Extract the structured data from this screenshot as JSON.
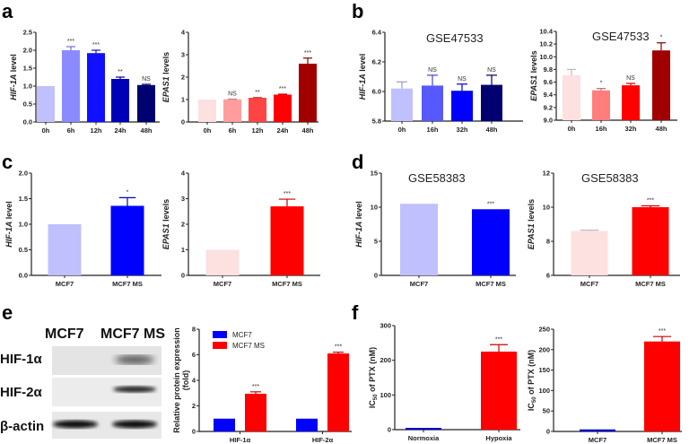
{
  "panel_letters": [
    "a",
    "b",
    "c",
    "d",
    "e",
    "f"
  ],
  "western_blot": {
    "columns": [
      "MCF7",
      "MCF7 MS"
    ],
    "rows": [
      "HIF-1α",
      "HIF-2α",
      "β-actin"
    ]
  },
  "chart_data": [
    {
      "id": "a1",
      "type": "bar",
      "title": "",
      "ylabel": [
        {
          "t": "HIF-1A",
          "i": true
        },
        {
          "t": " level"
        }
      ],
      "ylim": [
        0,
        2.5
      ],
      "yticks": [
        "0.0",
        "0.5",
        "1.0",
        "1.5",
        "2.0",
        "2.5"
      ],
      "categories": [
        "0h",
        "6h",
        "12h",
        "24h",
        "48h"
      ],
      "values": [
        1.0,
        2.0,
        1.92,
        1.2,
        1.03
      ],
      "errors": [
        0,
        0.1,
        0.08,
        0.05,
        0.02
      ],
      "sig": [
        "",
        "***",
        "***",
        "**",
        "NS"
      ],
      "colors": [
        "#c0c0ff",
        "#8b8bff",
        "#1010ff",
        "#0000b8",
        "#000070"
      ]
    },
    {
      "id": "a2",
      "type": "bar",
      "title": "",
      "ylabel": [
        {
          "t": "EPAS1",
          "i": true
        },
        {
          "t": " levels"
        }
      ],
      "ylim": [
        0,
        4
      ],
      "yticks": [
        "0",
        "1",
        "2",
        "3",
        "4"
      ],
      "categories": [
        "0h",
        "6h",
        "12h",
        "24h",
        "48h"
      ],
      "values": [
        1.0,
        1.01,
        1.08,
        1.22,
        2.6
      ],
      "errors": [
        0,
        0.01,
        0.01,
        0.02,
        0.25
      ],
      "sig": [
        "",
        "NS",
        "**",
        "***",
        "***"
      ],
      "colors": [
        "#fde0e0",
        "#ff9d9d",
        "#ff4444",
        "#ff0000",
        "#a00000"
      ]
    },
    {
      "id": "b1",
      "type": "bar",
      "title": "GSE47533",
      "ylabel": [
        {
          "t": "HIF-1A",
          "i": true
        },
        {
          "t": " level"
        }
      ],
      "ylim": [
        5.8,
        6.4
      ],
      "yticks": [
        "5.8",
        "6.0",
        "6.2",
        "6.4"
      ],
      "categories": [
        "0h",
        "16h",
        "32h",
        "48h"
      ],
      "values": [
        6.02,
        6.04,
        6.005,
        6.045
      ],
      "errors": [
        0.045,
        0.07,
        0.045,
        0.065
      ],
      "sig": [
        "",
        "NS",
        "NS",
        "NS"
      ],
      "colors": [
        "#c0c0ff",
        "#5858ff",
        "#0000ff",
        "#000070"
      ]
    },
    {
      "id": "b2",
      "type": "bar",
      "title": "GSE47533",
      "ylabel": [
        {
          "t": "EPAS1",
          "i": true
        },
        {
          "t": " levels"
        }
      ],
      "ylim": [
        9.0,
        10.4
      ],
      "yticks": [
        "9.0",
        "9.2",
        "9.4",
        "9.6",
        "9.8",
        "10.0",
        "10.2",
        "10.4"
      ],
      "categories": [
        "0h",
        "16h",
        "32h",
        "48h"
      ],
      "values": [
        9.71,
        9.47,
        9.55,
        10.1
      ],
      "errors": [
        0.09,
        0.03,
        0.03,
        0.12
      ],
      "sig": [
        "",
        "*",
        "NS",
        "*"
      ],
      "colors": [
        "#fde0e0",
        "#ff7d7d",
        "#ff0000",
        "#a00000"
      ]
    },
    {
      "id": "c1",
      "type": "bar",
      "title": "",
      "ylabel": [
        {
          "t": "HIF-1A",
          "i": true
        },
        {
          "t": " level"
        }
      ],
      "ylim": [
        0,
        2.0
      ],
      "yticks": [
        "0.0",
        "0.5",
        "1.0",
        "1.5",
        "2.0"
      ],
      "categories": [
        "MCF7",
        "MCF7 MS"
      ],
      "values": [
        1.0,
        1.36
      ],
      "errors": [
        0,
        0.16
      ],
      "sig": [
        "",
        "*"
      ],
      "colors": [
        "#c0c0ff",
        "#0000ff"
      ]
    },
    {
      "id": "c2",
      "type": "bar",
      "title": "",
      "ylabel": [
        {
          "t": "EPAS1",
          "i": true
        },
        {
          "t": " levels"
        }
      ],
      "ylim": [
        0,
        4
      ],
      "yticks": [
        "0",
        "1",
        "2",
        "3",
        "4"
      ],
      "categories": [
        "MCF7",
        "MCF7 MS"
      ],
      "values": [
        1.0,
        2.7
      ],
      "errors": [
        0,
        0.28
      ],
      "sig": [
        "",
        "***"
      ],
      "colors": [
        "#fde0e0",
        "#ff0000"
      ]
    },
    {
      "id": "d1",
      "type": "bar",
      "title": "GSE58383",
      "ylabel": [
        {
          "t": "HIF-1A",
          "i": true
        },
        {
          "t": " level"
        }
      ],
      "ylim": [
        0,
        15
      ],
      "yticks": [
        "0",
        "5",
        "10",
        "15"
      ],
      "categories": [
        "MCF7",
        "MCF7 MS"
      ],
      "values": [
        10.5,
        9.7
      ],
      "errors": [
        0,
        0
      ],
      "sig": [
        "",
        "***"
      ],
      "colors": [
        "#c0c0ff",
        "#0000ff"
      ]
    },
    {
      "id": "d2",
      "type": "bar",
      "title": "GSE58383",
      "ylabel": [
        {
          "t": "EPAS1",
          "i": true
        },
        {
          "t": " levels"
        }
      ],
      "ylim": [
        6,
        12
      ],
      "yticks": [
        "6",
        "8",
        "10",
        "12"
      ],
      "categories": [
        "MCF7",
        "MCF7 MS"
      ],
      "values": [
        8.6,
        10.0
      ],
      "errors": [
        0.05,
        0.08
      ],
      "sig": [
        "",
        "***"
      ],
      "colors": [
        "#fde0e0",
        "#ff0000"
      ]
    },
    {
      "id": "e1",
      "type": "grouped-bar",
      "title": "",
      "ylabel": [
        {
          "t": "Relative protein expression"
        }
      ],
      "ylabel2": "(fold)",
      "ylim": [
        0,
        8
      ],
      "yticks": [
        "0",
        "2",
        "4",
        "6",
        "8"
      ],
      "categories": [
        "HIF-1α",
        "HIF-2α"
      ],
      "series": [
        {
          "name": "MCF7",
          "color": "#0000ff",
          "values": [
            1.0,
            1.0
          ],
          "errors": [
            0,
            0
          ],
          "sig": [
            "",
            ""
          ]
        },
        {
          "name": "MCF7 MS",
          "color": "#ff0000",
          "values": [
            2.95,
            6.1
          ],
          "errors": [
            0.15,
            0.1
          ],
          "sig": [
            "***",
            "***"
          ]
        }
      ],
      "legend": "top-left"
    },
    {
      "id": "f1",
      "type": "bar",
      "title": "",
      "ylabel": [
        {
          "t": "IC"
        },
        {
          "t": "50",
          "sub": true
        },
        {
          "t": " of PTX (nM)"
        }
      ],
      "ylim": [
        0,
        300
      ],
      "yticks": [
        "0",
        "100",
        "200",
        "300"
      ],
      "categories": [
        "Normoxia",
        "Hypoxia"
      ],
      "values": [
        5,
        225
      ],
      "errors": [
        0,
        20
      ],
      "sig": [
        "",
        "***"
      ],
      "colors": [
        "#0000cc",
        "#ff0000"
      ]
    },
    {
      "id": "f2",
      "type": "bar",
      "title": "",
      "ylabel": [
        {
          "t": "IC"
        },
        {
          "t": "50",
          "sub": true
        },
        {
          "t": " of PTX (nM)"
        }
      ],
      "ylim": [
        0,
        250
      ],
      "yticks": [
        "0",
        "50",
        "100",
        "150",
        "200",
        "250"
      ],
      "categories": [
        "MCF7",
        "MCF7 MS"
      ],
      "values": [
        5,
        220
      ],
      "errors": [
        0,
        12
      ],
      "sig": [
        "",
        "***"
      ],
      "colors": [
        "#0000cc",
        "#ff0000"
      ]
    }
  ]
}
